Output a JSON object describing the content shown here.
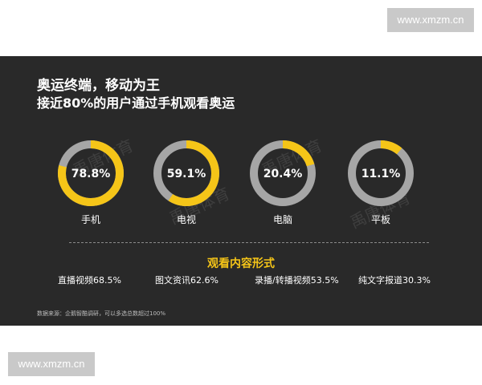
{
  "watermark_text": "www.xmzm.cn",
  "header": {
    "title": "奥运终端，移动为王",
    "subtitle": "接近80%的用户通过手机观看奥运"
  },
  "watermark_overlay": "禹唐体育",
  "colors": {
    "accent": "#f5c518",
    "ring_track": "#a6a6a6",
    "background": "#292929"
  },
  "chart_data": {
    "type": "pie",
    "variant": "donut",
    "categories": [
      "手机",
      "电视",
      "电脑",
      "平板"
    ],
    "values": [
      78.8,
      59.1,
      20.4,
      11.1
    ],
    "value_labels": [
      "78.8%",
      "59.1%",
      "20.4%",
      "11.1%"
    ],
    "unit": "%",
    "title": "奥运终端，移动为王",
    "subtitle": "接近80%的用户通过手机观看奥运"
  },
  "content_section": {
    "title": "观看内容形式",
    "items": [
      {
        "label": "直播视频68.5%"
      },
      {
        "label": "图文资讯62.6%"
      },
      {
        "label": "录播/转播视频53.5%"
      },
      {
        "label": "纯文字报道30.3%"
      }
    ]
  },
  "source_note": "数据来源：企鹅智酷调研，可以多选总数超过100%"
}
